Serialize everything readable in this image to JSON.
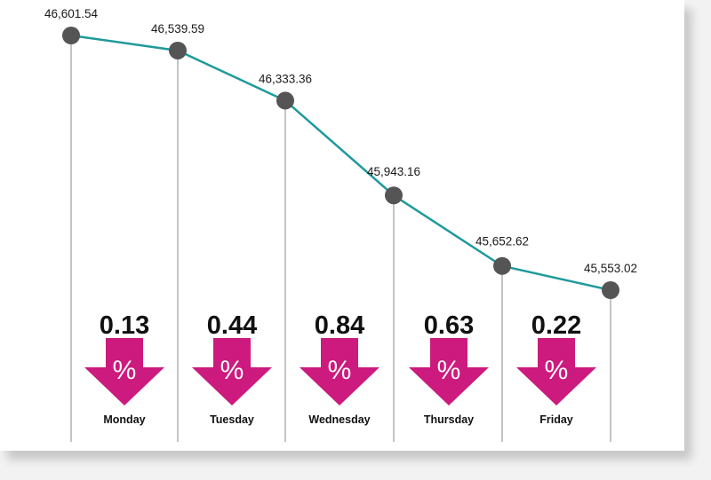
{
  "chart_data": {
    "type": "line",
    "categories": [
      "",
      "",
      "",
      "",
      "",
      ""
    ],
    "values": [
      46601.54,
      46539.59,
      46333.36,
      45943.16,
      45652.62,
      45553.02
    ],
    "value_labels": [
      "46,601.54",
      "46,539.59",
      "46,333.36",
      "45,943.16",
      "45,652.62",
      "45,553.02"
    ],
    "changes": [
      {
        "day": "Monday",
        "pct": "0.13",
        "symbol": "%"
      },
      {
        "day": "Tuesday",
        "pct": "0.44",
        "symbol": "%"
      },
      {
        "day": "Wednesday",
        "pct": "0.84",
        "symbol": "%"
      },
      {
        "day": "Thursday",
        "pct": "0.63",
        "symbol": "%"
      },
      {
        "day": "Friday",
        "pct": "0.22",
        "symbol": "%"
      }
    ],
    "direction": "down",
    "ylim": [
      45400,
      46700
    ],
    "grid": false,
    "colors": {
      "line": "#1f9a9c",
      "marker": "#555555",
      "arrow": "#cc1a7e",
      "vline": "#888888"
    }
  }
}
